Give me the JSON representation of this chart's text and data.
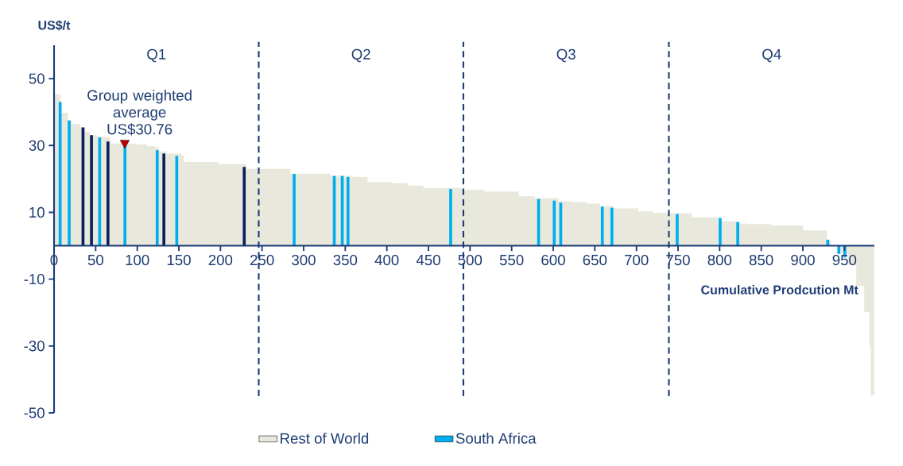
{
  "chart_data": {
    "type": "area",
    "xlabel": "Cumulative Prodcution Mt",
    "ylabel": "US$/t",
    "xlim": [
      0,
      986
    ],
    "ylim": [
      -50,
      60
    ],
    "xticks": [
      0,
      50,
      100,
      150,
      200,
      250,
      300,
      350,
      400,
      450,
      500,
      550,
      600,
      650,
      700,
      750,
      800,
      850,
      900,
      950
    ],
    "yticks": [
      -50,
      -30,
      -10,
      10,
      30,
      50
    ],
    "legend": "bottom",
    "series": [
      {
        "name": "Rest of World",
        "color": "#e9e8dc",
        "x": [
          0,
          8.0,
          16.6,
          21.1,
          31.9,
          37.7,
          43.1,
          52,
          60.7,
          68.0,
          99,
          111.7,
          121.3,
          126.1,
          134.7,
          153.3,
          156.4,
          198,
          230.5,
          284,
          332,
          357,
          376.7,
          405.4,
          425,
          443.7,
          490,
          517,
          558.4,
          577.9,
          606.6,
          622.6,
          640,
          656,
          672,
          702.4,
          720,
          740.7,
          766.3,
          798.2,
          820.6,
          862,
          900.4,
          929,
          934,
          941.8,
          954.6,
          964.2,
          973.8,
          980,
          981.5,
          986
        ],
        "values": [
          45.3,
          39.8,
          37.5,
          36.4,
          35.4,
          34.1,
          33.1,
          32.6,
          32.5,
          30.6,
          30.3,
          29.8,
          29.5,
          28.2,
          27.6,
          27.0,
          25.1,
          24.5,
          23.0,
          21.6,
          20.9,
          20.6,
          19.1,
          18.7,
          18.0,
          17.3,
          16.7,
          16.2,
          14.8,
          14.2,
          13.3,
          13.1,
          12.6,
          11.9,
          11.2,
          10.3,
          9.9,
          9.7,
          8.5,
          7.3,
          6.5,
          6.1,
          4.6,
          1.8,
          0.2,
          -2.5,
          -5.7,
          -12,
          -19.9,
          -30.1,
          -44.7,
          -44.7
        ]
      },
      {
        "name": "South Africa",
        "type": "bar",
        "color": "#00aeef",
        "x": [
          7.3,
          18.2,
          54.8,
          85.2,
          124,
          147.5,
          288.6,
          336.8,
          346.4,
          353.3,
          476.7,
          582.4,
          601.2,
          609,
          659,
          670.5,
          749,
          800.6,
          821.8,
          929.9,
          943.2,
          950.5
        ],
        "values": [
          43,
          37.5,
          32.4,
          30.3,
          28.6,
          26.9,
          21.5,
          20.9,
          20.9,
          20.6,
          17.0,
          14.0,
          13.5,
          12.9,
          11.7,
          11.4,
          9.5,
          8.3,
          7.1,
          1.8,
          -2.4,
          -3.5
        ]
      },
      {
        "type": "bar",
        "color": "#0b1f5e",
        "x": [
          34.8,
          45,
          64.8,
          132,
          228.6
        ],
        "values": [
          35.4,
          33.1,
          31.2,
          27.6,
          23.6
        ]
      },
      {
        "name": "Group weighted average US$30.76",
        "type": "scatter",
        "marker": "triangle",
        "color": "#c00000",
        "x": [
          85
        ],
        "values": [
          30.76
        ]
      }
    ],
    "ref_lines": [
      {
        "axis": "x",
        "value": 246,
        "color": "#1f3d73",
        "line_style": "dashed"
      },
      {
        "axis": "x",
        "value": 492,
        "color": "#1f3d73",
        "line_style": "dashed"
      },
      {
        "axis": "x",
        "value": 739,
        "color": "#1f3d73",
        "line_style": "dashed"
      }
    ],
    "annotations": [
      "Q1",
      "Q2",
      "Q3",
      "Q4"
    ]
  }
}
